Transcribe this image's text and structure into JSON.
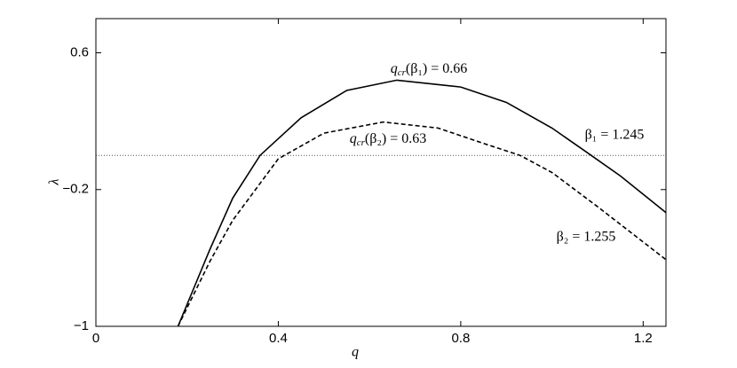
{
  "chart_data": {
    "type": "line",
    "x_label": "q",
    "y_label": "λ",
    "xlim": [
      0,
      1.25
    ],
    "ylim": [
      -1,
      0.8
    ],
    "xticks": [
      0,
      0.4,
      0.8,
      1.2
    ],
    "yticks": [
      {
        "value": -1,
        "label": "−1"
      },
      {
        "value": -0.2,
        "label": "−0.2"
      },
      0.6
    ],
    "reference_line": {
      "y": 0,
      "style": "dotted",
      "color": "#555555"
    },
    "series": [
      {
        "name": "β₁ = 1.245",
        "color": "#000000",
        "dash": "solid",
        "x": [
          0.18,
          0.25,
          0.3,
          0.36,
          0.45,
          0.55,
          0.66,
          0.8,
          0.9,
          1.0,
          1.07,
          1.15,
          1.25
        ],
        "values": [
          -1,
          -0.55,
          -0.25,
          0,
          0.22,
          0.38,
          0.44,
          0.4,
          0.31,
          0.16,
          0.03,
          -0.12,
          -0.335
        ]
      },
      {
        "name": "β₂ = 1.255",
        "color": "#000000",
        "dash": "dashed",
        "x": [
          0.18,
          0.25,
          0.3,
          0.4,
          0.5,
          0.63,
          0.75,
          0.85,
          0.93,
          1.0,
          1.1,
          1.25
        ],
        "values": [
          -1,
          -0.62,
          -0.38,
          -0.02,
          0.13,
          0.195,
          0.16,
          0.07,
          0,
          -0.1,
          -0.3,
          -0.61
        ]
      }
    ],
    "annotations": [
      {
        "base": "q",
        "sub": "cr",
        "rest": "(β₁) = 0.66"
      },
      {
        "base": "q",
        "sub": "cr",
        "rest": "(β₂) = 0.63"
      }
    ]
  }
}
